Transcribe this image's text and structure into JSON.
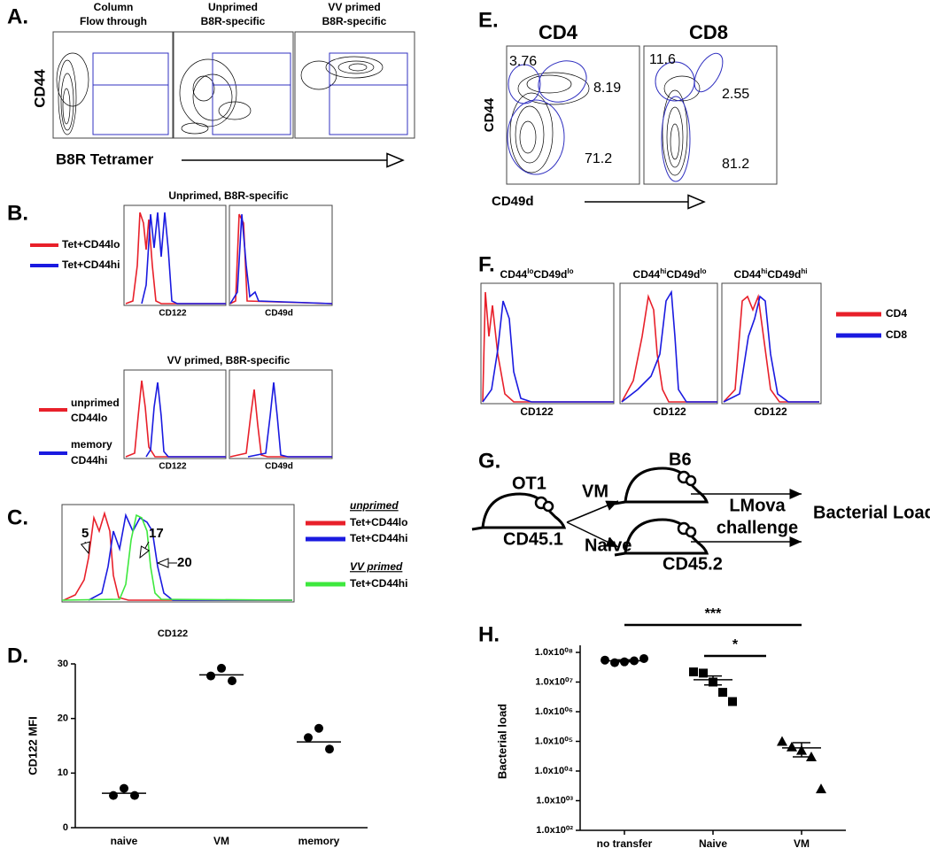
{
  "panels": {
    "A": {
      "label": "A.",
      "headers": [
        [
          "Column",
          "Flow through"
        ],
        [
          "Unprimed",
          "B8R-specific"
        ],
        [
          "VV primed",
          "B8R-specific"
        ]
      ],
      "y_label": "CD44",
      "x_label": "B8R Tetramer"
    },
    "B": {
      "label": "B.",
      "plots": [
        {
          "title": "Unprimed, B8R-specific",
          "legend": [
            [
              "Tet+CD44lo"
            ],
            [
              "Tet+CD44hi"
            ]
          ],
          "x_labels": [
            "CD122",
            "CD49d"
          ]
        },
        {
          "title": "VV primed, B8R-specific",
          "legend": [
            [
              "unprimed",
              "CD44lo"
            ],
            [
              "memory",
              "CD44hi"
            ]
          ],
          "x_labels": [
            "CD122",
            "CD49d"
          ]
        }
      ]
    },
    "C": {
      "label": "C.",
      "annotations": [
        "5",
        "17",
        "20"
      ],
      "x_label": "CD122",
      "legend_groups": [
        {
          "title": "unprimed",
          "entries": [
            "Tet+CD44lo",
            "Tet+CD44hi"
          ]
        },
        {
          "title": "VV primed",
          "entries": [
            "Tet+CD44hi"
          ]
        }
      ]
    },
    "E": {
      "label": "E.",
      "titles": [
        "CD4",
        "CD8"
      ],
      "y_label": "CD44",
      "x_label": "CD49d",
      "gates": [
        [
          "3.76",
          "8.19",
          "71.2"
        ],
        [
          "11.6",
          "2.55",
          "81.2"
        ]
      ]
    },
    "F": {
      "label": "F.",
      "headers": [
        [
          "CD44",
          "lo",
          "CD49d",
          "lo"
        ],
        [
          "CD44",
          "hi",
          "CD49d",
          "lo"
        ],
        [
          "CD44",
          "hi",
          "CD49d",
          "hi"
        ]
      ],
      "x_labels": [
        "CD122",
        "CD122",
        "CD122"
      ],
      "legend": [
        "CD4",
        "CD8"
      ]
    },
    "G": {
      "label": "G.",
      "donor": "OT1",
      "donor_marker": "CD45.1",
      "branches": [
        "VM",
        "Naive"
      ],
      "host_strain": "B6",
      "host_marker": "CD45.2",
      "challenge": [
        "LMova",
        "challenge"
      ],
      "readout": "Bacterial Load"
    }
  },
  "chart_data": [
    {
      "type": "dot",
      "panel_label": "D.",
      "y_label": "CD122 MFI",
      "categories": [
        "naive",
        "VM",
        "memory"
      ],
      "values": [
        [
          7.2,
          5.9,
          5.9
        ],
        [
          29.2,
          27.8,
          26.9
        ],
        [
          18.2,
          16.5,
          14.4
        ]
      ],
      "means": [
        6.3,
        28,
        15.7
      ],
      "ylim": [
        0,
        30
      ],
      "yticks": [
        0,
        10,
        20,
        30
      ],
      "marker": "circle",
      "color": "#000000"
    },
    {
      "type": "dot",
      "panel_label": "H.",
      "y_label": "Bacterial load",
      "categories": [
        "no transfer",
        "Naive",
        "VM"
      ],
      "values": [
        [
          55000000,
          45000000,
          48000000,
          52000000,
          62000000
        ],
        [
          22000000,
          20000000,
          10000000,
          4500000,
          2200000
        ],
        [
          100000,
          65000,
          50000,
          30000,
          2500
        ]
      ],
      "means": [
        52000000,
        12000000,
        60000
      ],
      "errors": [
        4000000,
        4000000,
        30000
      ],
      "ylim": [
        100,
        100000000
      ],
      "log_scale": true,
      "yticks": [
        {
          "value": 100,
          "label": "1.0x10⁰²"
        },
        {
          "value": 1000,
          "label": "1.0x10⁰³"
        },
        {
          "value": 10000,
          "label": "1.0x10⁰⁴"
        },
        {
          "value": 100000,
          "label": "1.0x10⁰⁵"
        },
        {
          "value": 1000000,
          "label": "1.0x10⁰⁶"
        },
        {
          "value": 10000000,
          "label": "1.0x10⁰⁷"
        },
        {
          "value": 100000000,
          "label": "1.0x10⁰⁸"
        }
      ],
      "markers": [
        "circle",
        "square",
        "triangle"
      ],
      "color": "#000000",
      "annotations": [
        "***",
        "*"
      ]
    }
  ]
}
